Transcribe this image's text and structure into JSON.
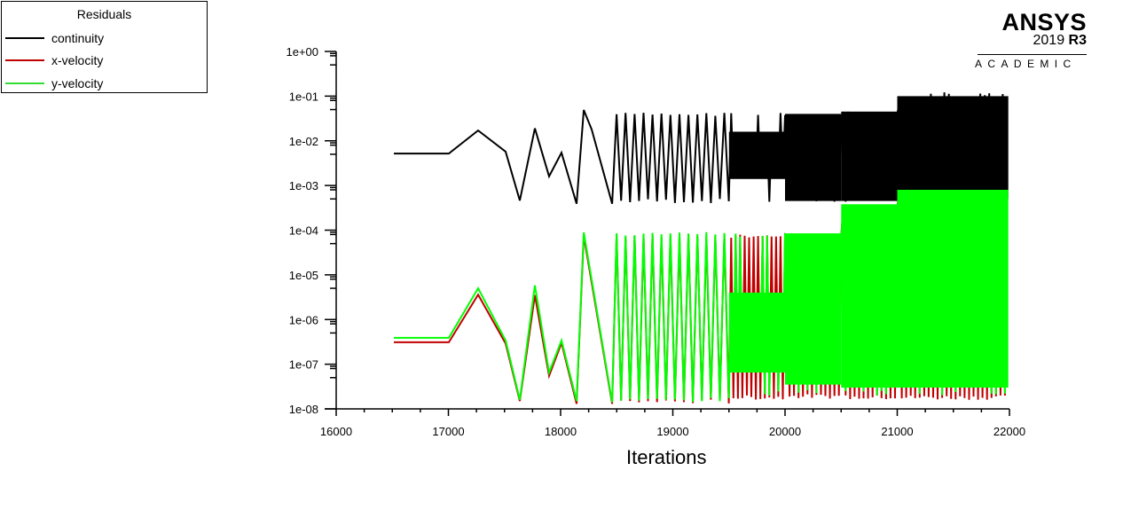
{
  "legend": {
    "title": "Residuals",
    "items": [
      {
        "label": "continuity",
        "color": "#000000"
      },
      {
        "label": "x-velocity",
        "color": "#c00000"
      },
      {
        "label": "y-velocity",
        "color": "#00ff00"
      }
    ]
  },
  "logo": {
    "brand": "ANSYS",
    "version_year": "2019",
    "version_release": "R3",
    "edition": "ACADEMIC"
  },
  "chart_data": {
    "type": "line",
    "title": "Residuals",
    "xlabel": "Iterations",
    "ylabel": "",
    "yscale": "log",
    "xlim": [
      16000,
      22000
    ],
    "ylim": [
      1e-08,
      1
    ],
    "x_ticks": [
      16000,
      17000,
      18000,
      19000,
      20000,
      21000,
      22000
    ],
    "x_tick_labels": [
      "16000",
      "17000",
      "18000",
      "19000",
      "20000",
      "21000",
      "22000"
    ],
    "y_ticks": [
      1,
      0.1,
      0.01,
      0.001,
      0.0001,
      1e-05,
      1e-06,
      1e-07,
      1e-08
    ],
    "y_tick_labels": [
      "1e+00",
      "1e-01",
      "1e-02",
      "1e-03",
      "1e-04",
      "1e-05",
      "1e-06",
      "1e-07",
      "1e-08"
    ],
    "grid": false,
    "legend_position": "top-left, outside plot",
    "series": [
      {
        "name": "continuity",
        "color": "#000000",
        "points": [
          [
            16514,
            0.0052
          ],
          [
            17004,
            0.0052
          ],
          [
            17265,
            0.017
          ],
          [
            17510,
            0.0057
          ],
          [
            17636,
            0.00046
          ],
          [
            17771,
            0.019
          ],
          [
            17897,
            0.0016
          ],
          [
            18008,
            0.0054
          ],
          [
            18142,
            0.00039
          ],
          [
            18206,
            0.049
          ],
          [
            18277,
            0.018
          ],
          [
            18459,
            0.00039
          ]
        ],
        "oscillation_bands": [
          {
            "from": 18459,
            "to": 19500,
            "period": 80,
            "high": 0.043,
            "low": 0.0004,
            "mid_low": 0.002,
            "mid_high": 0.015
          },
          {
            "from": 19500,
            "to": 20000,
            "period": 40,
            "high": 0.043,
            "low": 0.0004,
            "dense_high": 0.016,
            "dense_low": 0.0014
          },
          {
            "from": 20000,
            "to": 20500,
            "period": 40,
            "high": 0.043,
            "low": 0.00042,
            "dense_high": 0.04,
            "dense_low": 0.00045
          },
          {
            "from": 20500,
            "to": 21000,
            "period": 40,
            "high": 0.048,
            "low": 0.00042,
            "dense_high": 0.045,
            "dense_low": 0.00045
          },
          {
            "from": 21000,
            "to": 21990,
            "period": 40,
            "high": 0.125,
            "low": 0.00043,
            "dense_high": 0.1,
            "dense_low": 0.0005
          }
        ]
      },
      {
        "name": "x-velocity",
        "color": "#c00000",
        "points": [
          [
            16514,
            3.1e-07
          ],
          [
            17004,
            3.1e-07
          ],
          [
            17265,
            3.6e-06
          ],
          [
            17510,
            2.9e-07
          ],
          [
            17636,
            1.5e-08
          ],
          [
            17771,
            3.5e-06
          ],
          [
            17897,
            5.5e-08
          ],
          [
            18008,
            3e-07
          ],
          [
            18142,
            1.3e-08
          ],
          [
            18206,
            7.5e-05
          ],
          [
            18459,
            1.3e-08
          ]
        ],
        "oscillation_bands": [
          {
            "from": 18459,
            "to": 19500,
            "period": 80,
            "high": 8e-05,
            "low": 1.3e-08
          },
          {
            "from": 19500,
            "to": 20000,
            "period": 40,
            "high": 8e-05,
            "low": 1.6e-08
          },
          {
            "from": 20000,
            "to": 20500,
            "period": 40,
            "high": 8e-05,
            "low": 1.7e-08
          },
          {
            "from": 20500,
            "to": 21000,
            "period": 40,
            "high": 0.00035,
            "low": 1.6e-08
          },
          {
            "from": 21000,
            "to": 21990,
            "period": 40,
            "high": 0.00075,
            "low": 1.6e-08
          }
        ]
      },
      {
        "name": "y-velocity",
        "color": "#00ff00",
        "points": [
          [
            16514,
            3.9e-07
          ],
          [
            17004,
            3.9e-07
          ],
          [
            17265,
            5e-06
          ],
          [
            17510,
            3.4e-07
          ],
          [
            17636,
            1.6e-08
          ],
          [
            17771,
            5.8e-06
          ],
          [
            17897,
            6.5e-08
          ],
          [
            18008,
            3.4e-07
          ],
          [
            18142,
            1.5e-08
          ],
          [
            18206,
            8.9e-05
          ],
          [
            18459,
            1.4e-08
          ]
        ],
        "oscillation_bands": [
          {
            "from": 18459,
            "to": 19500,
            "period": 80,
            "high": 9e-05,
            "low": 1.4e-08
          },
          {
            "from": 19500,
            "to": 20000,
            "period": 40,
            "high": 8.5e-05,
            "low": 2e-08,
            "dense_high": 4e-06,
            "dense_low": 6.5e-08
          },
          {
            "from": 20000,
            "to": 20500,
            "period": 40,
            "high": 8.5e-05,
            "low": 2.2e-08,
            "dense_high": 8.5e-05,
            "dense_low": 3.5e-08
          },
          {
            "from": 20500,
            "to": 21000,
            "period": 40,
            "high": 0.00038,
            "low": 2e-08,
            "dense_high": 0.00038,
            "dense_low": 3e-08
          },
          {
            "from": 21000,
            "to": 21990,
            "period": 40,
            "high": 0.0008,
            "low": 2e-08,
            "dense_high": 0.0008,
            "dense_low": 3e-08
          }
        ]
      }
    ]
  }
}
